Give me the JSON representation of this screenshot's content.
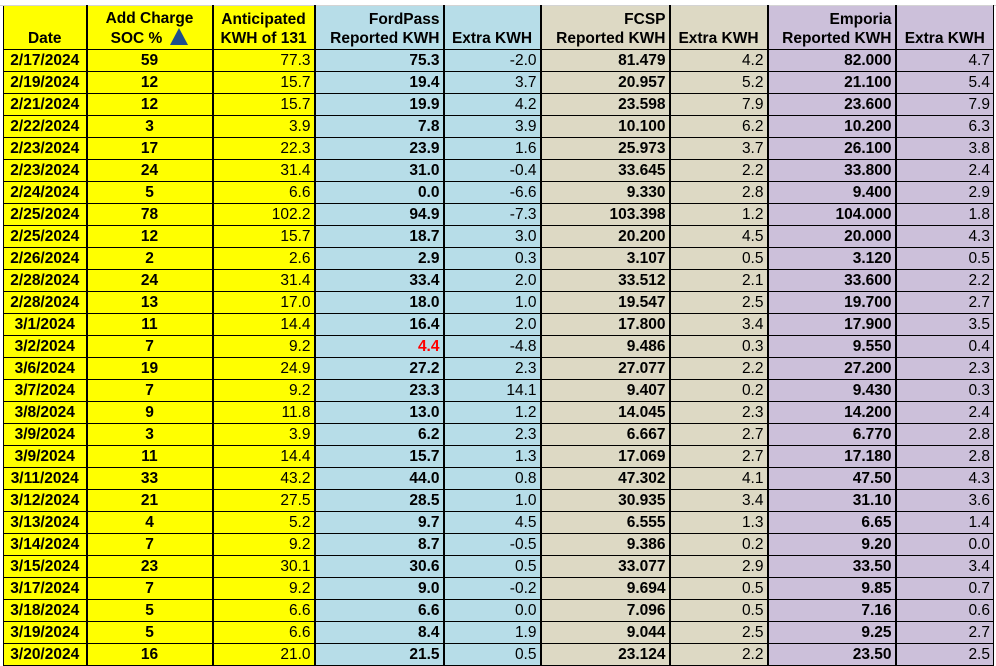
{
  "colors": {
    "yellow": "#ffff00",
    "fordpass": "#b7dde8",
    "fcsp": "#ddd9c4",
    "emporia": "#ccc0da",
    "highlight_text": "#ff0000"
  },
  "headers": {
    "date": "Date",
    "soc_line1": "Add Charge",
    "soc_line2": "SOC %",
    "soc_icon": "filter-sort-triangle-icon",
    "anticipated_line1": "Anticipated",
    "anticipated_line2": "KWH of 131",
    "fordpass_line1": "FordPass",
    "fordpass_line2": "Reported KWH",
    "fordpass_extra": "Extra KWH",
    "fcsp_line1": "FCSP",
    "fcsp_line2": "Reported KWH",
    "fcsp_extra": "Extra KWH",
    "emporia_line1": "Emporia",
    "emporia_line2": "Reported KWH",
    "emporia_extra": "Extra KWH"
  },
  "rows": [
    [
      "2/17/2024",
      "59",
      "77.3",
      "75.3",
      "-2.0",
      "81.479",
      "4.2",
      "82.000",
      "4.7"
    ],
    [
      "2/19/2024",
      "12",
      "15.7",
      "19.4",
      "3.7",
      "20.957",
      "5.2",
      "21.100",
      "5.4"
    ],
    [
      "2/21/2024",
      "12",
      "15.7",
      "19.9",
      "4.2",
      "23.598",
      "7.9",
      "23.600",
      "7.9"
    ],
    [
      "2/22/2024",
      "3",
      "3.9",
      "7.8",
      "3.9",
      "10.100",
      "6.2",
      "10.200",
      "6.3"
    ],
    [
      "2/23/2024",
      "17",
      "22.3",
      "23.9",
      "1.6",
      "25.973",
      "3.7",
      "26.100",
      "3.8"
    ],
    [
      "2/23/2024",
      "24",
      "31.4",
      "31.0",
      "-0.4",
      "33.645",
      "2.2",
      "33.800",
      "2.4"
    ],
    [
      "2/24/2024",
      "5",
      "6.6",
      "0.0",
      "-6.6",
      "9.330",
      "2.8",
      "9.400",
      "2.9"
    ],
    [
      "2/25/2024",
      "78",
      "102.2",
      "94.9",
      "-7.3",
      "103.398",
      "1.2",
      "104.000",
      "1.8"
    ],
    [
      "2/25/2024",
      "12",
      "15.7",
      "18.7",
      "3.0",
      "20.200",
      "4.5",
      "20.000",
      "4.3"
    ],
    [
      "2/26/2024",
      "2",
      "2.6",
      "2.9",
      "0.3",
      "3.107",
      "0.5",
      "3.120",
      "0.5"
    ],
    [
      "2/28/2024",
      "24",
      "31.4",
      "33.4",
      "2.0",
      "33.512",
      "2.1",
      "33.600",
      "2.2"
    ],
    [
      "2/28/2024",
      "13",
      "17.0",
      "18.0",
      "1.0",
      "19.547",
      "2.5",
      "19.700",
      "2.7"
    ],
    [
      "3/1/2024",
      "11",
      "14.4",
      "16.4",
      "2.0",
      "17.800",
      "3.4",
      "17.900",
      "3.5"
    ],
    [
      "3/2/2024",
      "7",
      "9.2",
      "4.4",
      "-4.8",
      "9.486",
      "0.3",
      "9.550",
      "0.4"
    ],
    [
      "3/6/2024",
      "19",
      "24.9",
      "27.2",
      "2.3",
      "27.077",
      "2.2",
      "27.200",
      "2.3"
    ],
    [
      "3/7/2024",
      "7",
      "9.2",
      "23.3",
      "14.1",
      "9.407",
      "0.2",
      "9.430",
      "0.3"
    ],
    [
      "3/8/2024",
      "9",
      "11.8",
      "13.0",
      "1.2",
      "14.045",
      "2.3",
      "14.200",
      "2.4"
    ],
    [
      "3/9/2024",
      "3",
      "3.9",
      "6.2",
      "2.3",
      "6.667",
      "2.7",
      "6.770",
      "2.8"
    ],
    [
      "3/9/2024",
      "11",
      "14.4",
      "15.7",
      "1.3",
      "17.069",
      "2.7",
      "17.180",
      "2.8"
    ],
    [
      "3/11/2024",
      "33",
      "43.2",
      "44.0",
      "0.8",
      "47.302",
      "4.1",
      "47.50",
      "4.3"
    ],
    [
      "3/12/2024",
      "21",
      "27.5",
      "28.5",
      "1.0",
      "30.935",
      "3.4",
      "31.10",
      "3.6"
    ],
    [
      "3/13/2024",
      "4",
      "5.2",
      "9.7",
      "4.5",
      "6.555",
      "1.3",
      "6.65",
      "1.4"
    ],
    [
      "3/14/2024",
      "7",
      "9.2",
      "8.7",
      "-0.5",
      "9.386",
      "0.2",
      "9.20",
      "0.0"
    ],
    [
      "3/15/2024",
      "23",
      "30.1",
      "30.6",
      "0.5",
      "33.077",
      "2.9",
      "33.50",
      "3.4"
    ],
    [
      "3/17/2024",
      "7",
      "9.2",
      "9.0",
      "-0.2",
      "9.694",
      "0.5",
      "9.85",
      "0.7"
    ],
    [
      "3/18/2024",
      "5",
      "6.6",
      "6.6",
      "0.0",
      "7.096",
      "0.5",
      "7.16",
      "0.6"
    ],
    [
      "3/19/2024",
      "5",
      "6.6",
      "8.4",
      "1.9",
      "9.044",
      "2.5",
      "9.25",
      "2.7"
    ],
    [
      "3/20/2024",
      "16",
      "21.0",
      "21.5",
      "0.5",
      "23.124",
      "2.2",
      "23.50",
      "2.5"
    ]
  ],
  "red_cells": [
    {
      "row": 13,
      "col": 3
    }
  ]
}
